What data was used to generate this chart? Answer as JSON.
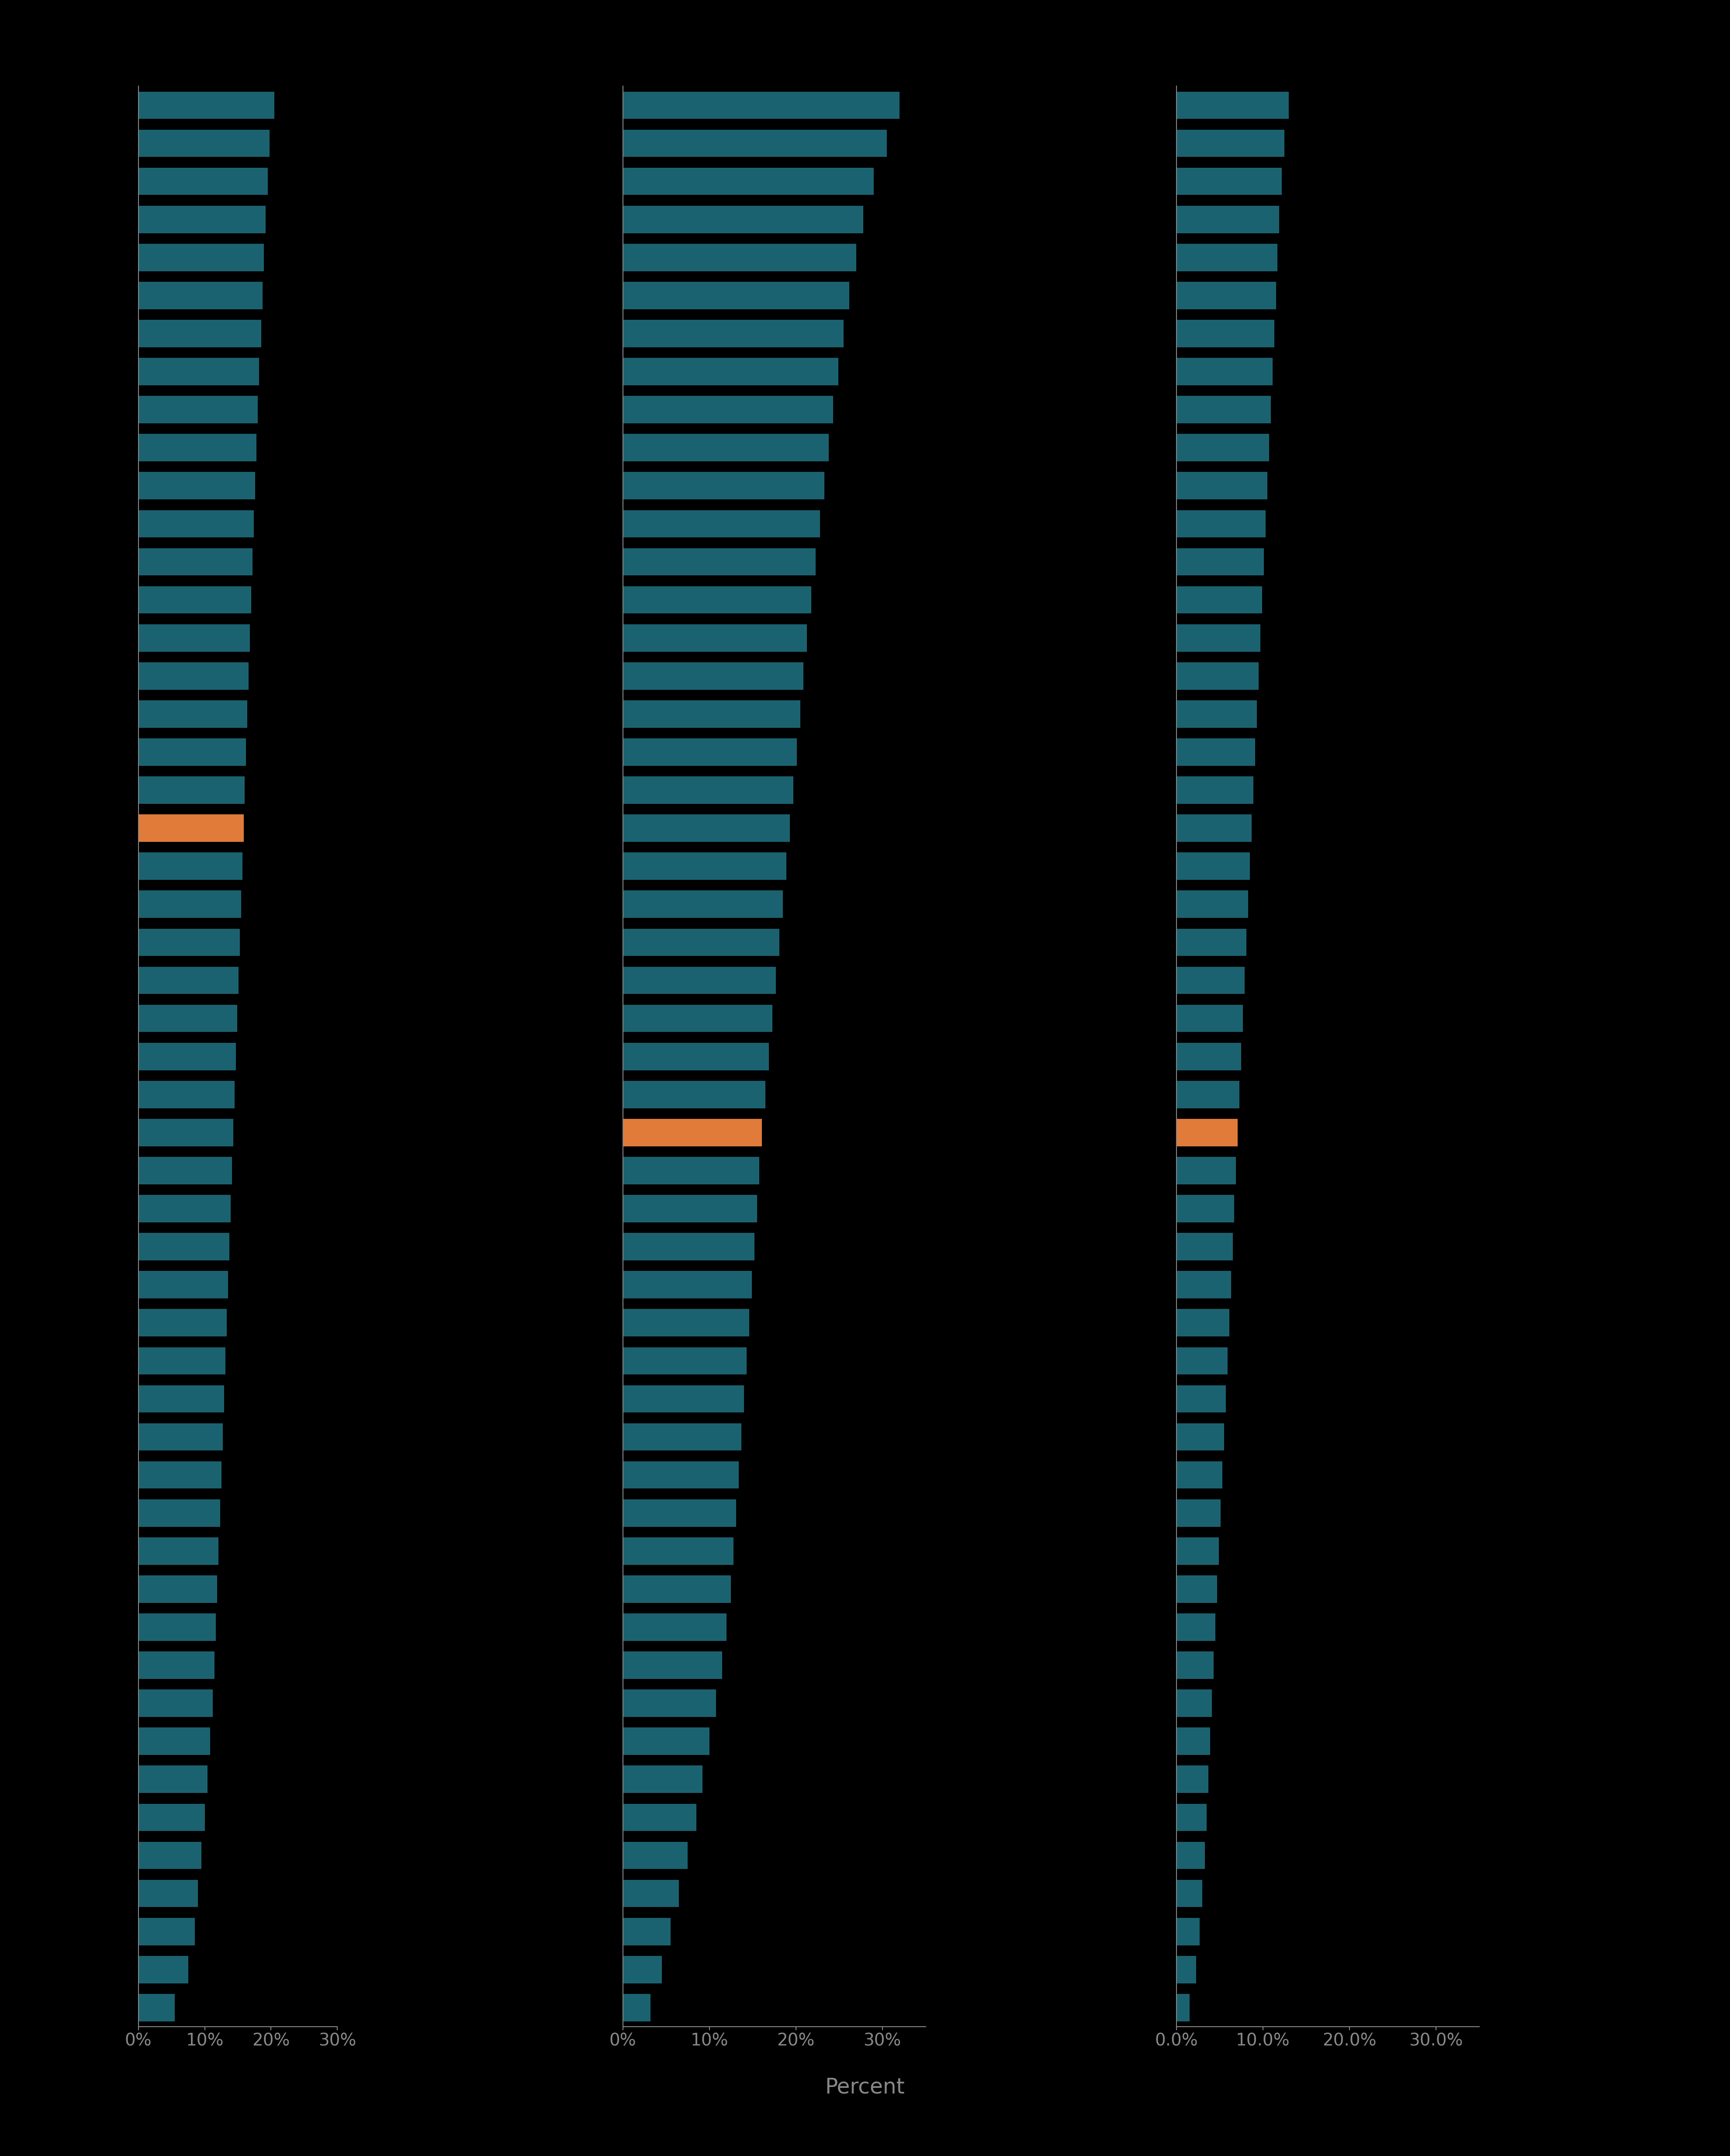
{
  "background_color": "#000000",
  "bar_color_teal": "#1B6270",
  "bar_color_orange": "#E07B39",
  "tick_label_color": "#888888",
  "xlabel": "Percent",
  "xlabel_color": "#888888",
  "n_bars": 51,
  "black_highlight_index": 19,
  "hispanic_highlight_index": 27,
  "white_highlight_index": 27,
  "black_values": [
    20.5,
    19.8,
    19.5,
    19.2,
    18.9,
    18.7,
    18.5,
    18.2,
    18.0,
    17.8,
    17.6,
    17.4,
    17.2,
    17.0,
    16.8,
    16.6,
    16.4,
    16.2,
    16.0,
    15.9,
    15.7,
    15.5,
    15.3,
    15.1,
    14.9,
    14.7,
    14.5,
    14.3,
    14.1,
    13.9,
    13.7,
    13.5,
    13.3,
    13.1,
    12.9,
    12.7,
    12.5,
    12.3,
    12.1,
    11.9,
    11.7,
    11.5,
    11.2,
    10.8,
    10.4,
    10.0,
    9.5,
    9.0,
    8.5,
    7.5,
    5.5
  ],
  "hispanic_values": [
    32.0,
    30.5,
    29.0,
    27.8,
    27.0,
    26.2,
    25.5,
    24.9,
    24.3,
    23.8,
    23.3,
    22.8,
    22.3,
    21.8,
    21.3,
    20.9,
    20.5,
    20.1,
    19.7,
    19.3,
    18.9,
    18.5,
    18.1,
    17.7,
    17.3,
    16.9,
    16.5,
    16.1,
    15.8,
    15.5,
    15.2,
    14.9,
    14.6,
    14.3,
    14.0,
    13.7,
    13.4,
    13.1,
    12.8,
    12.5,
    12.0,
    11.5,
    10.8,
    10.0,
    9.2,
    8.5,
    7.5,
    6.5,
    5.5,
    4.5,
    3.2
  ],
  "white_values": [
    13.0,
    12.5,
    12.2,
    11.9,
    11.7,
    11.5,
    11.3,
    11.1,
    10.9,
    10.7,
    10.5,
    10.3,
    10.1,
    9.9,
    9.7,
    9.5,
    9.3,
    9.1,
    8.9,
    8.7,
    8.5,
    8.3,
    8.1,
    7.9,
    7.7,
    7.5,
    7.3,
    7.1,
    6.9,
    6.7,
    6.5,
    6.3,
    6.1,
    5.9,
    5.7,
    5.5,
    5.3,
    5.1,
    4.9,
    4.7,
    4.5,
    4.3,
    4.1,
    3.9,
    3.7,
    3.5,
    3.3,
    3.0,
    2.7,
    2.3,
    1.5
  ],
  "black_xlim": 25,
  "hispanic_xlim": 35,
  "white_xlim": 35,
  "black_xticks": [
    0,
    10,
    20,
    30
  ],
  "hispanic_xticks": [
    0,
    10,
    20,
    30
  ],
  "white_xticks": [
    0,
    10,
    20,
    30
  ],
  "black_xticklabels": [
    "0%",
    "10%",
    "20%",
    "30%"
  ],
  "hispanic_xticklabels": [
    "0%",
    "10%",
    "20%",
    "30%"
  ],
  "white_xticklabels": [
    "0.0%",
    "10.0%",
    "20.0%",
    "30.0%"
  ]
}
